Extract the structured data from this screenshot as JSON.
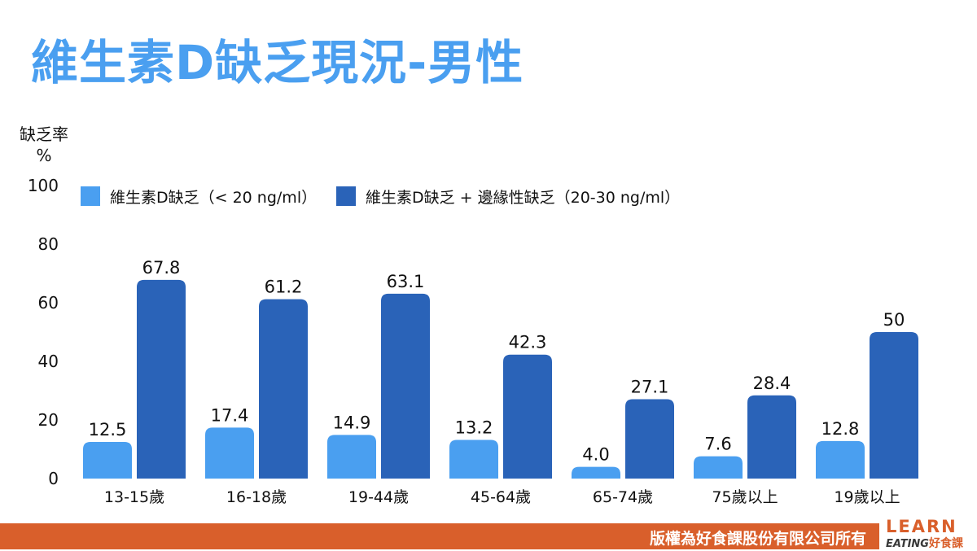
{
  "title": "維生素D缺乏現況-男性",
  "footer": {
    "copyright": "版權為好食課股份有限公司所有"
  },
  "logo": {
    "top": "LEARN",
    "bottom_en": "EATING",
    "bottom_zh": "好食課"
  },
  "colors": {
    "title": "#4a9ff0",
    "series1": "#4a9ff0",
    "series2": "#2a63b8",
    "footer": "#d95f2b"
  },
  "chart_data": {
    "type": "bar",
    "ylabel_line1": "缺乏率",
    "ylabel_line2": "%",
    "ylim": [
      0,
      100
    ],
    "yticks": [
      0,
      20,
      40,
      60,
      80,
      100
    ],
    "categories": [
      "13-15歲",
      "16-18歲",
      "19-44歲",
      "45-64歲",
      "65-74歲",
      "75歲以上",
      "19歲以上"
    ],
    "series": [
      {
        "name": "維生素D缺乏（< 20 ng/ml）",
        "values": [
          12.5,
          17.4,
          14.9,
          13.2,
          4.0,
          7.6,
          12.8
        ],
        "labels": [
          "12.5",
          "17.4",
          "14.9",
          "13.2",
          "4.0",
          "7.6",
          "12.8"
        ]
      },
      {
        "name": "維生素D缺乏 + 邊緣性缺乏（20-30 ng/ml）",
        "values": [
          67.8,
          61.2,
          63.1,
          42.3,
          27.1,
          28.4,
          50
        ],
        "labels": [
          "67.8",
          "61.2",
          "63.1",
          "42.3",
          "27.1",
          "28.4",
          "50"
        ]
      }
    ],
    "legend_position": "top-left",
    "grid": false
  }
}
